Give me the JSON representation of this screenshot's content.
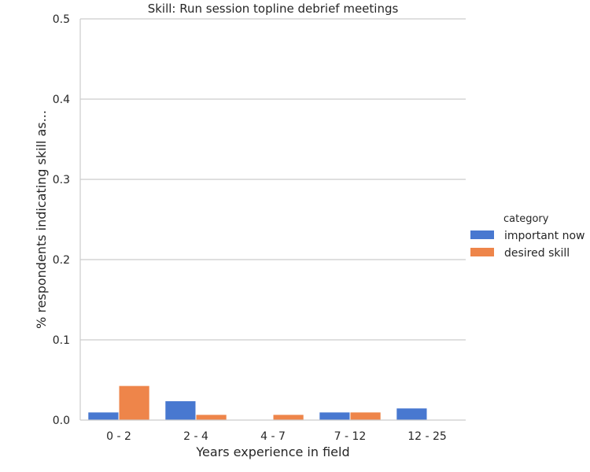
{
  "chart_data": {
    "type": "bar",
    "title": "Skill: Run session topline debrief meetings",
    "xlabel": "Years experience in field",
    "ylabel": "% respondents indicating skill as...",
    "categories": [
      "0 - 2",
      "2 - 4",
      "4 - 7",
      "7 - 12",
      "12 - 25"
    ],
    "series": [
      {
        "name": "important now",
        "values": [
          0.01,
          0.024,
          0.0,
          0.01,
          0.015
        ],
        "color": "#4878d0"
      },
      {
        "name": "desired skill",
        "values": [
          0.043,
          0.007,
          0.007,
          0.01,
          0.0
        ],
        "color": "#ee854a"
      }
    ],
    "ylim": [
      0,
      0.5
    ],
    "yticks": [
      "0.0",
      "0.1",
      "0.2",
      "0.3",
      "0.4",
      "0.5"
    ],
    "grid": true,
    "legend": {
      "title": "category",
      "placement": "right"
    }
  }
}
